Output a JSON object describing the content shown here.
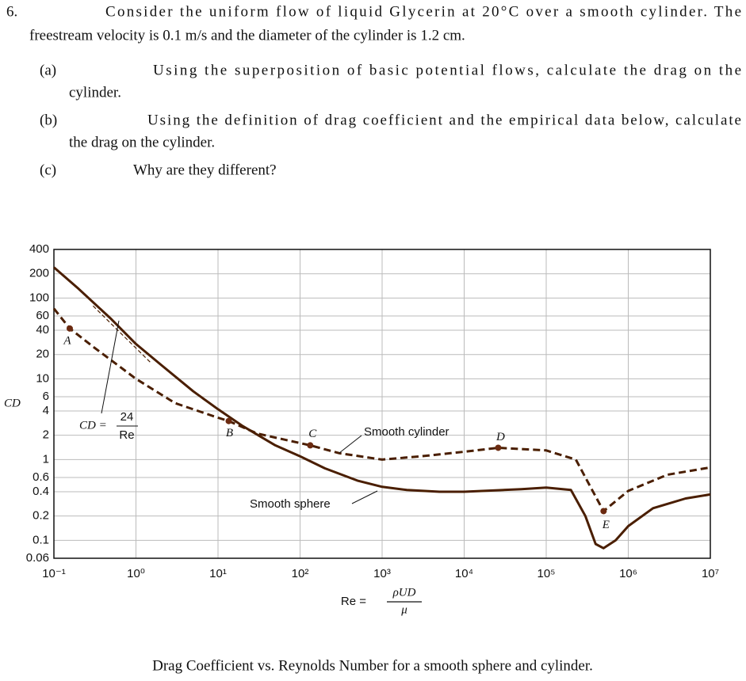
{
  "problem": {
    "number": "6.",
    "statement_lines": [
      "Consider the uniform flow of liquid Glycerin at 20°C over a smooth cylinder. The",
      "freestream velocity is 0.1 m/s and the diameter of the cylinder is 1.2 cm."
    ],
    "parts": [
      {
        "label": "(a)",
        "lines": [
          "Using the superposition of basic potential flows, calculate the drag on the",
          "cylinder."
        ]
      },
      {
        "label": "(b)",
        "lines": [
          "Using the definition of drag coefficient and the empirical data below, calculate",
          "the drag on the cylinder."
        ]
      },
      {
        "label": "(c)",
        "lines": [
          "Why are they different?"
        ]
      }
    ]
  },
  "chart_data": {
    "type": "line",
    "log_x": true,
    "log_y": true,
    "grid": true,
    "y_label": "CD",
    "x_label": {
      "lhs": "Re =",
      "num": "ρUD",
      "den": "μ"
    },
    "formula": {
      "lhs": "CD =",
      "num": "24",
      "den": "Re",
      "x": [
        0.3,
        1.5
      ],
      "values": [
        80,
        16
      ]
    },
    "xlim": [
      0.1,
      10000000
    ],
    "ylim": [
      0.06,
      400
    ],
    "xticks": [
      {
        "value": 0.1,
        "label": "10⁻¹"
      },
      {
        "value": 1,
        "label": "10⁰"
      },
      {
        "value": 10,
        "label": "10¹"
      },
      {
        "value": 100,
        "label": "10²"
      },
      {
        "value": 1000,
        "label": "10³"
      },
      {
        "value": 10000,
        "label": "10⁴"
      },
      {
        "value": 100000,
        "label": "10⁵"
      },
      {
        "value": 1000000,
        "label": "10⁶"
      },
      {
        "value": 10000000,
        "label": "10⁷"
      }
    ],
    "yticks": [
      0.06,
      0.1,
      0.2,
      0.4,
      0.6,
      1,
      2,
      4,
      6,
      10,
      20,
      40,
      60,
      100,
      200,
      400
    ],
    "series": [
      {
        "name": "Smooth cylinder",
        "color": "#4a1e00",
        "dashed": true,
        "x": [
          0.1,
          0.156,
          0.3,
          1,
          3,
          10,
          13.5,
          30,
          133,
          300,
          1000,
          3000,
          10000,
          26000,
          100000,
          230000,
          350000,
          500000,
          1000000,
          3000000,
          10000000
        ],
        "values": [
          74,
          42,
          25,
          10,
          5,
          3.3,
          3.0,
          2.1,
          1.5,
          1.2,
          1.0,
          1.1,
          1.25,
          1.4,
          1.3,
          1.0,
          0.45,
          0.23,
          0.41,
          0.65,
          0.8
        ]
      },
      {
        "name": "Smooth sphere",
        "color": "#4a1e00",
        "dashed": false,
        "x": [
          0.1,
          0.2,
          0.5,
          1,
          2,
          5,
          10,
          20,
          50,
          100,
          200,
          500,
          1000,
          2000,
          5000,
          10000,
          50000,
          100000,
          200000,
          300000,
          400000,
          500000,
          700000,
          1000000,
          2000000,
          5000000,
          10000000
        ],
        "values": [
          240,
          130,
          55,
          27,
          15,
          7,
          4.2,
          2.6,
          1.5,
          1.1,
          0.78,
          0.55,
          0.46,
          0.42,
          0.4,
          0.4,
          0.43,
          0.45,
          0.42,
          0.2,
          0.09,
          0.08,
          0.1,
          0.15,
          0.25,
          0.33,
          0.37
        ]
      }
    ],
    "points": [
      {
        "label": "A",
        "x": 0.156,
        "y": 42
      },
      {
        "label": "B",
        "x": 13.5,
        "y": 3.0
      },
      {
        "label": "C",
        "x": 133,
        "y": 1.5
      },
      {
        "label": "D",
        "x": 26000,
        "y": 1.4
      },
      {
        "label": "E",
        "x": 500000,
        "y": 0.23
      }
    ]
  },
  "caption": "Drag Coefficient vs. Reynolds Number for a smooth sphere and cylinder."
}
